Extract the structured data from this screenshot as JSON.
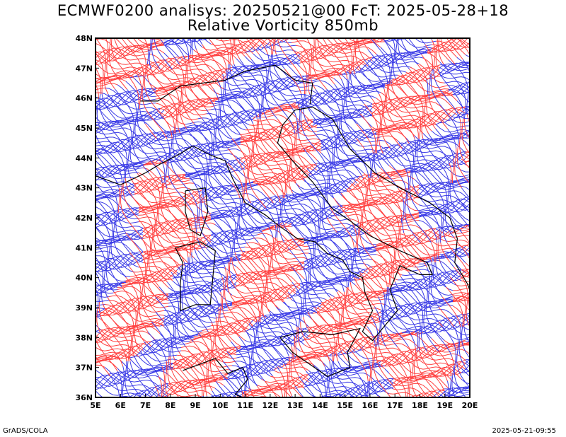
{
  "title_line1": "ECMWF0200 analisys: 20250521@00 FcT: 2025-05-28+18",
  "title_line2": "Relative Vorticity 850mb",
  "map": {
    "lon_range": [
      5,
      20
    ],
    "lat_range": [
      36,
      48
    ],
    "x_ticks": [
      "5E",
      "6E",
      "7E",
      "8E",
      "9E",
      "10E",
      "11E",
      "12E",
      "13E",
      "14E",
      "15E",
      "16E",
      "17E",
      "18E",
      "19E",
      "20E"
    ],
    "y_ticks": [
      "36N",
      "37N",
      "38N",
      "39N",
      "40N",
      "41N",
      "42N",
      "43N",
      "44N",
      "45N",
      "46N",
      "47N",
      "48N"
    ],
    "positive_color": "#ff4040",
    "negative_color": "#3a3ae6",
    "coast_color": "#000000"
  },
  "footer": {
    "credit": "GrADS/COLA",
    "timestamp": "2025-05-21-09:55"
  }
}
